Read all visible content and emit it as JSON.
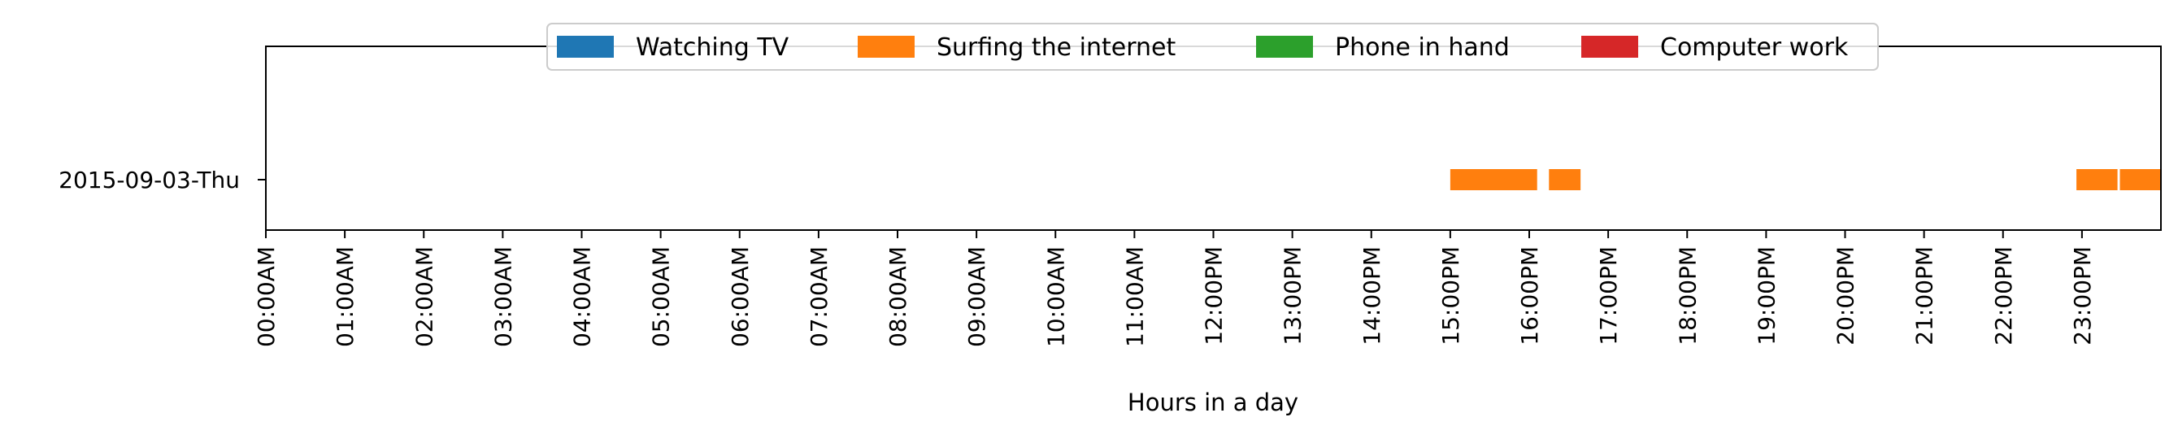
{
  "chart_data": {
    "type": "timeline",
    "xlabel": "Hours in a day",
    "ylabel": "",
    "xlim": [
      0,
      24
    ],
    "x_ticks": [
      "00:00AM",
      "01:00AM",
      "02:00AM",
      "03:00AM",
      "04:00AM",
      "05:00AM",
      "06:00AM",
      "07:00AM",
      "08:00AM",
      "09:00AM",
      "10:00AM",
      "11:00AM",
      "12:00PM",
      "13:00PM",
      "14:00PM",
      "15:00PM",
      "16:00PM",
      "17:00PM",
      "18:00PM",
      "19:00PM",
      "20:00PM",
      "21:00PM",
      "22:00PM",
      "23:00PM"
    ],
    "categories": [
      "2015-09-03-Thu"
    ],
    "legend_position": "top-center",
    "series": [
      {
        "name": "Watching TV",
        "color": "#1f77b4",
        "intervals": []
      },
      {
        "name": "Surfing the internet",
        "color": "#ff7f0e",
        "intervals": [
          {
            "category": "2015-09-03-Thu",
            "start": 15.0,
            "end": 16.1
          },
          {
            "category": "2015-09-03-Thu",
            "start": 16.25,
            "end": 16.65
          },
          {
            "category": "2015-09-03-Thu",
            "start": 22.93,
            "end": 23.45
          },
          {
            "category": "2015-09-03-Thu",
            "start": 23.48,
            "end": 24.0
          }
        ]
      },
      {
        "name": "Phone in hand",
        "color": "#2ca02c",
        "intervals": []
      },
      {
        "name": "Computer work",
        "color": "#d62728",
        "intervals": []
      }
    ]
  }
}
